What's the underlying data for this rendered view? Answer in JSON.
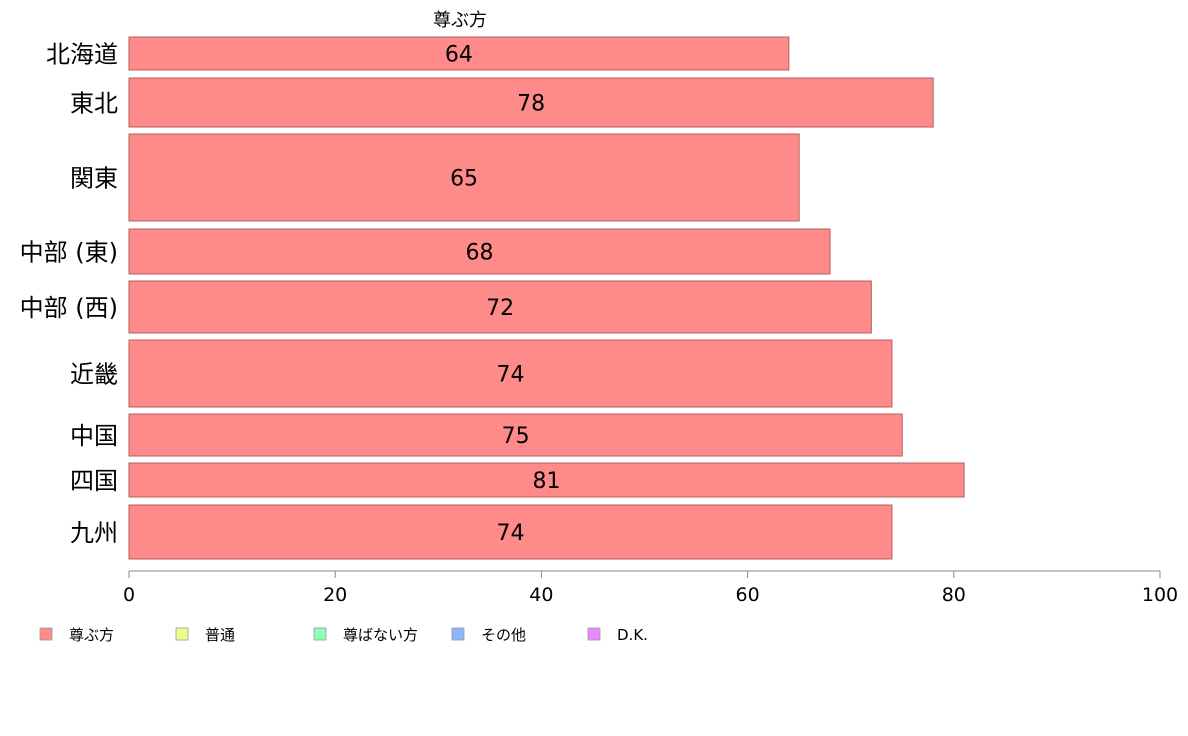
{
  "chart_data": {
    "type": "bar",
    "orientation": "horizontal",
    "title": "",
    "series_header": "尊ぶ方",
    "categories": [
      "北海道",
      "東北",
      "関東",
      "中部 (東)",
      "中部 (西)",
      "近畿",
      "中国",
      "四国",
      "九州"
    ],
    "values": [
      64,
      78,
      65,
      68,
      72,
      74,
      75,
      81,
      74
    ],
    "data_labels": [
      "64",
      "78",
      "65",
      "68",
      "72",
      "74",
      "75",
      "81",
      "74"
    ],
    "xlim": [
      0,
      100
    ],
    "xticks": [
      0,
      20,
      40,
      60,
      80,
      100
    ],
    "xtick_labels": [
      "0",
      "20",
      "40",
      "60",
      "80",
      "100"
    ],
    "grid": false,
    "legend_position": "bottom",
    "legend": [
      {
        "label": "尊ぶ方",
        "color": "#ff8a8a"
      },
      {
        "label": "普通",
        "color": "#e8ff8a"
      },
      {
        "label": "尊ばない方",
        "color": "#8affb8"
      },
      {
        "label": "その他",
        "color": "#8ab8ff"
      },
      {
        "label": "D.K.",
        "color": "#e88aff"
      }
    ],
    "bar_color": "#ff8a8a",
    "bar_stroke": "#b06060"
  }
}
